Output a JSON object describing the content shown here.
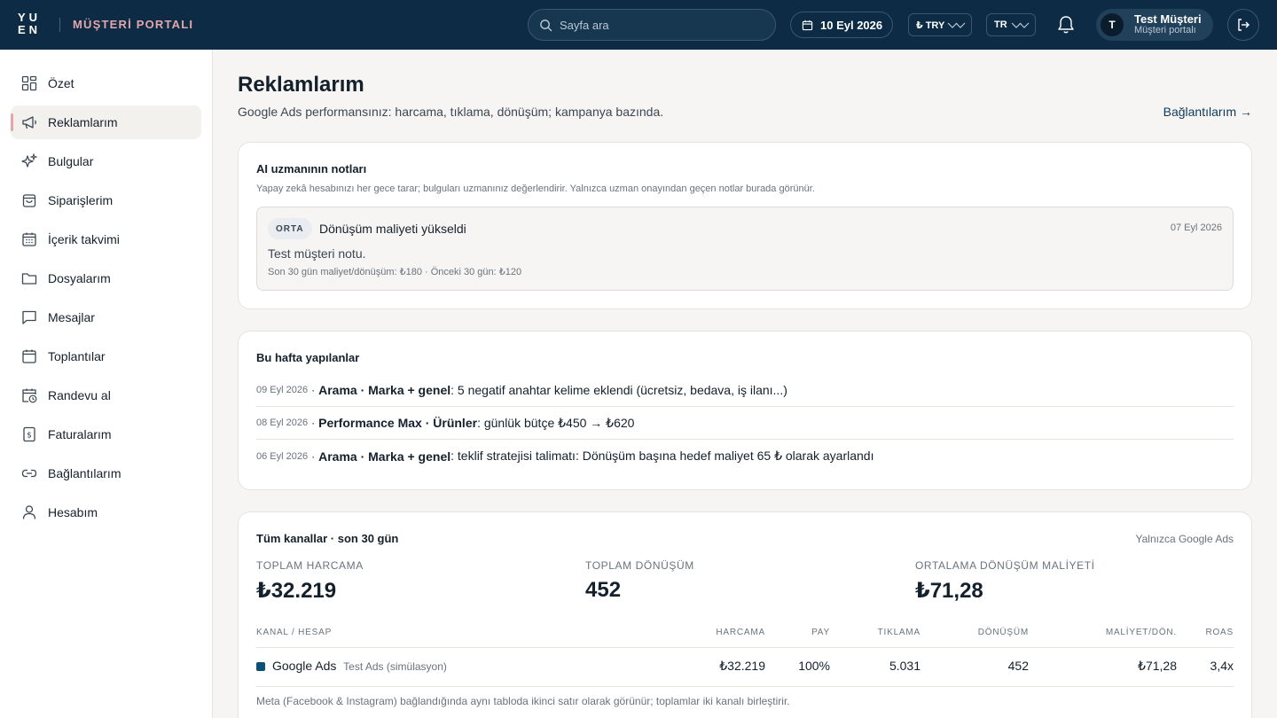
{
  "header": {
    "logo_row1": "YU",
    "logo_row2": "EN",
    "portal_title": "MÜŞTERİ PORTALI",
    "search_placeholder": "Sayfa ara",
    "date": "10 Eyl 2026",
    "currency": "₺ TRY",
    "language": "TR",
    "user_initial": "T",
    "user_name": "Test Müşteri",
    "user_role": "Müşteri portalı",
    "icons": [
      "search-icon",
      "calendar-icon",
      "chevron-down-icon",
      "bell-icon",
      "logout-icon"
    ]
  },
  "sidebar": {
    "active": "Reklamlarım",
    "items": [
      {
        "label": "Özet",
        "icon": "grid-icon"
      },
      {
        "label": "Reklamlarım",
        "icon": "megaphone-icon"
      },
      {
        "label": "Bulgular",
        "icon": "sparkle-icon"
      },
      {
        "label": "Siparişlerim",
        "icon": "bag-icon"
      },
      {
        "label": "İçerik takvimi",
        "icon": "calendar-grid-icon"
      },
      {
        "label": "Dosyalarım",
        "icon": "folder-icon"
      },
      {
        "label": "Mesajlar",
        "icon": "chat-icon"
      },
      {
        "label": "Toplantılar",
        "icon": "calendar-icon"
      },
      {
        "label": "Randevu al",
        "icon": "calendar-clock-icon"
      },
      {
        "label": "Faturalarım",
        "icon": "invoice-icon"
      },
      {
        "label": "Bağlantılarım",
        "icon": "link-icon"
      },
      {
        "label": "Hesabım",
        "icon": "user-icon"
      }
    ]
  },
  "page": {
    "title": "Reklamlarım",
    "subtitle": "Google Ads performansınız: harcama, tıklama, dönüşüm; kampanya bazında.",
    "connections_link": "Bağlantılarım →"
  },
  "ai_notes": {
    "title": "AI uzmanının notları",
    "description": "Yapay zekâ hesabınızı her gece tarar; bulguları uzmanınız değerlendirir. Yalnızca uzman onayından geçen notlar burada görünür.",
    "note": {
      "severity": "ORTA",
      "title": "Dönüşüm maliyeti yükseldi",
      "date": "07 Eyl 2026",
      "body": "Test müşteri notu.",
      "meta": "Son 30 gün maliyet/dönüşüm: ₺180 · Önceki 30 gün: ₺120"
    }
  },
  "this_week": {
    "title": "Bu hafta yapılanlar",
    "items": [
      {
        "date": "09 Eyl 2026",
        "campaign": "Arama · Marka + genel",
        "text": ": 5 negatif anahtar kelime eklendi (ücretsiz, bedava, iş ilanı...)"
      },
      {
        "date": "08 Eyl 2026",
        "campaign": "Performance Max · Ürünler",
        "text": ": günlük bütçe ₺450 → ₺620"
      },
      {
        "date": "06 Eyl 2026",
        "campaign": "Arama · Marka + genel",
        "text": ": teklif stratejisi talimatı: Dönüşüm başına hedef maliyet 65 ₺ olarak ayarlandı"
      }
    ]
  },
  "channels": {
    "title": "Tüm kanallar · son 30 gün",
    "scope": "Yalnızca Google Ads",
    "kpis": [
      {
        "label": "TOPLAM HARCAMA",
        "value": "₺32.219"
      },
      {
        "label": "TOPLAM DÖNÜŞÜM",
        "value": "452"
      },
      {
        "label": "ORTALAMA DÖNÜŞÜM MALİYETİ",
        "value": "₺71,28"
      }
    ],
    "columns": [
      "KANAL / HESAP",
      "HARCAMA",
      "PAY",
      "TIKLAMA",
      "DÖNÜŞÜM",
      "MALİYET/DÖN.",
      "ROAS"
    ],
    "rows": [
      {
        "channel": "Google Ads",
        "account": "Test Ads (simülasyon)",
        "spend": "₺32.219",
        "share": "100%",
        "clicks": "5.031",
        "conversions": "452",
        "cost_per_conv": "₺71,28",
        "roas": "3,4x",
        "color": "#0d4f75"
      }
    ],
    "footnote": "Meta (Facebook & Instagram) bağlandığında aynı tabloda ikinci satır olarak görünür; toplamlar iki kanalı birleştirir."
  }
}
